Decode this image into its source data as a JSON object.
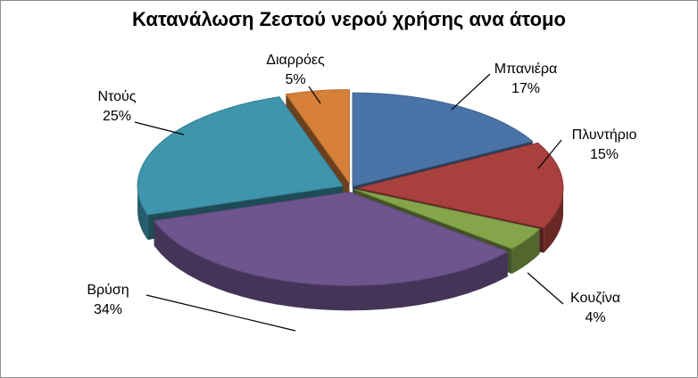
{
  "chart_data": {
    "type": "pie",
    "title": "Κατανάλωση Ζεστού νερού χρήσης ανα άτομο",
    "three_d": true,
    "exploded": true,
    "slices": [
      {
        "label": "Μπανιέρα",
        "value": 17,
        "percent_label": "17%",
        "color": "#4a73a8"
      },
      {
        "label": "Πλυντήριο",
        "value": 15,
        "percent_label": "15%",
        "color": "#a8403e"
      },
      {
        "label": "Κουζίνα",
        "value": 4,
        "percent_label": "4%",
        "color": "#84a54a"
      },
      {
        "label": "Βρύση",
        "value": 34,
        "percent_label": "34%",
        "color": "#6e558e"
      },
      {
        "label": "Ντούς",
        "value": 25,
        "percent_label": "25%",
        "color": "#3e95ac"
      },
      {
        "label": "Διαρρόες",
        "value": 5,
        "percent_label": "5%",
        "color": "#d6803a"
      }
    ],
    "legend": "none",
    "data_labels": "outside-with-leader-lines"
  }
}
